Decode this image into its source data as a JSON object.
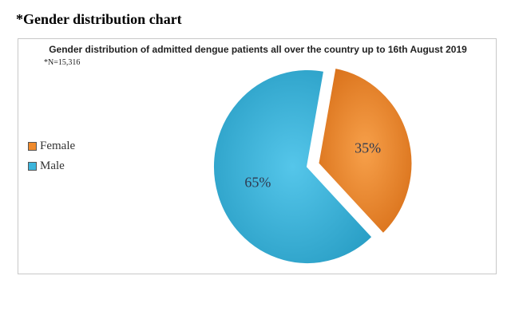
{
  "heading": "*Gender distribution chart",
  "chart_data": {
    "type": "pie",
    "title": "Gender distribution of admitted dengue patients all over the country up to 16th August 2019",
    "note": "*N=15,316",
    "legend_position": "left",
    "slices": [
      {
        "label": "Female",
        "value": 35,
        "display": "35%",
        "color": "#f08a2c"
      },
      {
        "label": "Male",
        "value": 65,
        "display": "65%",
        "color": "#3cb5dc"
      }
    ]
  }
}
